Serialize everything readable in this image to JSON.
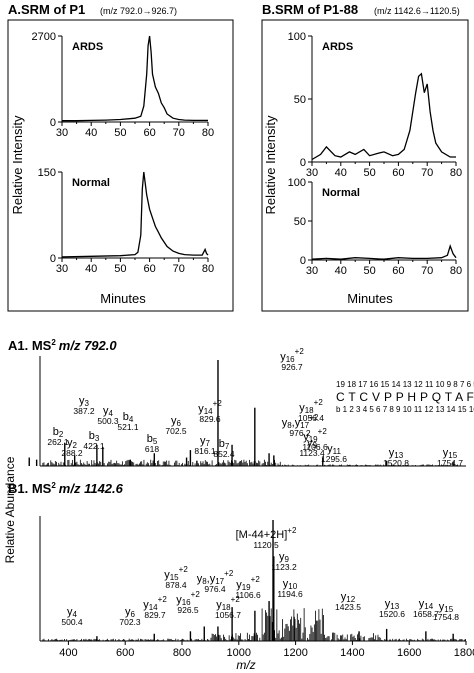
{
  "titles": {
    "a": "A.SRM of P1",
    "a_mz": "(m/z 792.0→926.7)",
    "b": "B.SRM of P1-88",
    "b_mz": "(m/z 1142.6→1120.5)",
    "a1": "A1. MS",
    "a1_tail": "m/z 792.0",
    "b1": "B1. MS",
    "b1_tail": "m/z 1142.6",
    "ms_sup": "2"
  },
  "srm": {
    "ylabel": "Relative Intensity",
    "xlabel": "Minutes"
  },
  "ms": {
    "ylabel": "Relative Abundance",
    "xlabel": "m/z"
  },
  "sequence": {
    "top_numbers": "19 18 17 16 15 14 13 12 11 10  9  8  7  6  5  4  3  2  1  y",
    "letters": "C T C V P P H P Q T A F C N S D L V I R",
    "bottom_numbers": "b  1  2  3  4  5  6  7  8  9 10 11 12 13 14 15 16 17 18 19"
  },
  "chart_data": [
    {
      "id": "A-ARDS",
      "type": "line",
      "title": "ARDS",
      "xlabel": "Minutes",
      "ylabel": "Relative Intensity",
      "xlim": [
        30,
        80
      ],
      "ylim": [
        0,
        2700
      ],
      "xticks": [
        "30",
        "40",
        "50",
        "60",
        "70",
        "80"
      ],
      "yticks": [
        "0",
        "2700"
      ],
      "x": [
        30,
        35,
        40,
        45,
        50,
        55,
        57,
        58,
        59,
        59.5,
        60,
        60.5,
        61,
        62,
        63,
        64,
        65,
        66,
        68,
        70,
        72,
        75,
        80
      ],
      "y": [
        40,
        40,
        50,
        60,
        80,
        120,
        180,
        500,
        1500,
        2400,
        2700,
        2200,
        1500,
        1100,
        900,
        600,
        450,
        250,
        120,
        80,
        60,
        50,
        50
      ]
    },
    {
      "id": "A-Normal",
      "type": "line",
      "title": "Normal",
      "xlabel": "Minutes",
      "ylabel": "Relative Intensity",
      "xlim": [
        30,
        80
      ],
      "ylim": [
        0,
        150
      ],
      "xticks": [
        "30",
        "40",
        "50",
        "60",
        "70",
        "80"
      ],
      "yticks": [
        "0",
        "150"
      ],
      "x": [
        30,
        40,
        50,
        55,
        56,
        57,
        57.5,
        58,
        59,
        60,
        61,
        62,
        63,
        64,
        66,
        68,
        70,
        72,
        75,
        78,
        79,
        79.5,
        80
      ],
      "y": [
        2,
        3,
        4,
        6,
        10,
        40,
        120,
        150,
        110,
        85,
        70,
        55,
        45,
        35,
        20,
        12,
        8,
        6,
        5,
        5,
        15,
        8,
        5
      ]
    },
    {
      "id": "B-ARDS",
      "type": "line",
      "title": "ARDS",
      "xlabel": "Minutes",
      "ylabel": "Relative Intensity",
      "xlim": [
        30,
        80
      ],
      "ylim": [
        0,
        100
      ],
      "xticks": [
        "30",
        "40",
        "50",
        "60",
        "70",
        "80"
      ],
      "yticks": [
        "0",
        "50",
        "100"
      ],
      "x": [
        30,
        33,
        35,
        38,
        40,
        43,
        45,
        48,
        50,
        53,
        55,
        58,
        60,
        62,
        64,
        66,
        67,
        68,
        69,
        70,
        71,
        72,
        73,
        75,
        78,
        80
      ],
      "y": [
        2,
        6,
        12,
        5,
        4,
        8,
        6,
        10,
        5,
        7,
        8,
        5,
        6,
        10,
        25,
        55,
        68,
        70,
        55,
        62,
        40,
        25,
        15,
        8,
        4,
        4
      ]
    },
    {
      "id": "B-Normal",
      "type": "line",
      "title": "Normal",
      "xlabel": "Minutes",
      "ylabel": "Relative Intensity",
      "xlim": [
        30,
        80
      ],
      "ylim": [
        0,
        100
      ],
      "xticks": [
        "30",
        "40",
        "50",
        "60",
        "70",
        "80"
      ],
      "yticks": [
        "0",
        "50",
        "100"
      ],
      "x": [
        30,
        35,
        40,
        45,
        50,
        55,
        60,
        65,
        70,
        75,
        77,
        78,
        79,
        80
      ],
      "y": [
        1,
        2,
        1,
        3,
        2,
        1,
        3,
        2,
        2,
        3,
        6,
        18,
        8,
        3
      ]
    },
    {
      "id": "A1",
      "type": "bar",
      "title": "A1. MS2 m/z 792.0",
      "xlabel": "m/z",
      "ylabel": "Relative Abundance",
      "xlim": [
        300,
        1800
      ],
      "xticks": [
        "400",
        "600",
        "800",
        "1000",
        "1200",
        "1400",
        "1600",
        "1800"
      ],
      "peaks": [
        {
          "mz": 262.1,
          "rel": 0.08,
          "label": "b2",
          "label_sub": "2"
        },
        {
          "mz": 288.2,
          "rel": 0.06,
          "label": "y2",
          "label_sub": "2"
        },
        {
          "mz": 387.2,
          "rel": 0.22,
          "label": "y3",
          "label_sub": "3"
        },
        {
          "mz": 422.1,
          "rel": 0.1,
          "label": "b3",
          "label_sub": "3"
        },
        {
          "mz": 500.3,
          "rel": 0.2,
          "label": "y4",
          "label_sub": "4"
        },
        {
          "mz": 521.1,
          "rel": 0.18,
          "label": "b4",
          "label_sub": "4"
        },
        {
          "mz": 618.0,
          "rel": 0.06,
          "label": "b5",
          "label_sub": "5"
        },
        {
          "mz": 702.5,
          "rel": 0.12,
          "label": "y6",
          "label_sub": "6"
        },
        {
          "mz": 816.1,
          "rel": 0.08,
          "label": "y7",
          "label_sub": "7"
        },
        {
          "mz": 829.6,
          "rel": 0.15,
          "label": "y14+2",
          "label_sub": "14+2"
        },
        {
          "mz": 852.4,
          "rel": 0.05,
          "label": "b7",
          "label_sub": "7"
        },
        {
          "mz": 926.7,
          "rel": 1.0,
          "label": "y16+2",
          "label_sub": "16+2"
        },
        {
          "mz": 976.2,
          "rel": 0.2,
          "label": "y8,y17+2",
          "label_sub": "8"
        },
        {
          "mz": 1056.4,
          "rel": 0.55,
          "label": "y18+2",
          "label_sub": "18+2"
        },
        {
          "mz": 1106.6,
          "rel": 0.12,
          "label": "y19+2",
          "label_sub": "19+2"
        },
        {
          "mz": 1123.4,
          "rel": 0.1,
          "label": "y9",
          "label_sub": "9"
        },
        {
          "mz": 1295.6,
          "rel": 0.08,
          "label": "y11",
          "label_sub": "11"
        },
        {
          "mz": 1520.8,
          "rel": 0.05,
          "label": "y13",
          "label_sub": "13"
        },
        {
          "mz": 1754.7,
          "rel": 0.04,
          "label": "y15",
          "label_sub": "15"
        }
      ]
    },
    {
      "id": "B1",
      "type": "bar",
      "title": "B1. MS2 m/z 1142.6",
      "xlabel": "m/z",
      "ylabel": "Relative Abundance",
      "xlim": [
        300,
        1800
      ],
      "xticks": [
        "400",
        "600",
        "800",
        "1000",
        "1200",
        "1400",
        "1600",
        "1800"
      ],
      "peaks": [
        {
          "mz": 500.4,
          "rel": 0.04,
          "label": "y4"
        },
        {
          "mz": 702.3,
          "rel": 0.06,
          "label": "y6"
        },
        {
          "mz": 829.7,
          "rel": 0.08,
          "label": "y14+2"
        },
        {
          "mz": 878.4,
          "rel": 0.12,
          "label": "y15+2"
        },
        {
          "mz": 926.5,
          "rel": 0.12,
          "label": "y16+2"
        },
        {
          "mz": 976.4,
          "rel": 0.28,
          "label": "y8,y17+2"
        },
        {
          "mz": 1056.7,
          "rel": 0.25,
          "label": "y18+2"
        },
        {
          "mz": 1106.6,
          "rel": 0.33,
          "label": "y19+2"
        },
        {
          "mz": 1120.5,
          "rel": 1.0,
          "label": "[M-44+2H]+2"
        },
        {
          "mz": 1123.2,
          "rel": 0.7,
          "label": "y9"
        },
        {
          "mz": 1194.6,
          "rel": 0.2,
          "label": "y10"
        },
        {
          "mz": 1423.5,
          "rel": 0.08,
          "label": "y12"
        },
        {
          "mz": 1520.6,
          "rel": 0.1,
          "label": "y13"
        },
        {
          "mz": 1658.7,
          "rel": 0.08,
          "label": "y14"
        },
        {
          "mz": 1754.8,
          "rel": 0.06,
          "label": "y15"
        }
      ]
    }
  ]
}
